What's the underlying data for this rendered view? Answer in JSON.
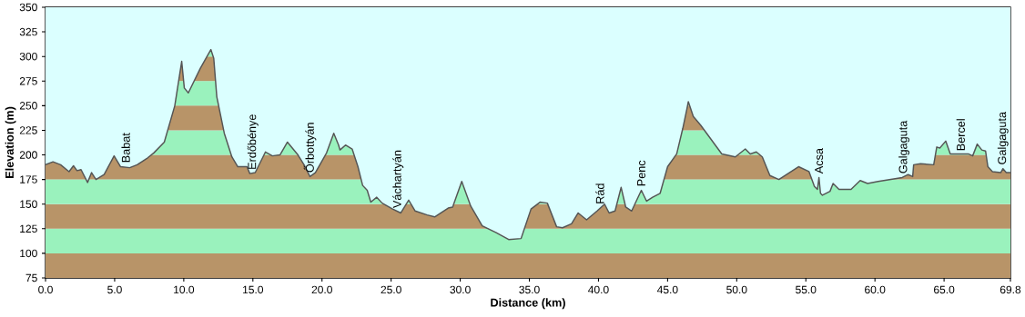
{
  "chart_data": {
    "type": "line",
    "xlabel": "Distance  (km)",
    "ylabel": "Elevation (m)",
    "xlim": [
      0,
      69.8
    ],
    "ylim": [
      75,
      350
    ],
    "xticks": [
      {
        "value": 0,
        "label": "0.0"
      },
      {
        "value": 5,
        "label": "5.0"
      },
      {
        "value": 10,
        "label": "10.0"
      },
      {
        "value": 15,
        "label": "15.0"
      },
      {
        "value": 20,
        "label": "20.0"
      },
      {
        "value": 25,
        "label": "25.0"
      },
      {
        "value": 30,
        "label": "30.0"
      },
      {
        "value": 35,
        "label": "35.0"
      },
      {
        "value": 40,
        "label": "40.0"
      },
      {
        "value": 45,
        "label": "45.0"
      },
      {
        "value": 50,
        "label": "50.0"
      },
      {
        "value": 55,
        "label": "55.0"
      },
      {
        "value": 60,
        "label": "60.0"
      },
      {
        "value": 65,
        "label": "65.0"
      },
      {
        "value": 69.8,
        "label": "69.8"
      }
    ],
    "yticks": [
      75,
      100,
      125,
      150,
      175,
      200,
      225,
      250,
      275,
      300,
      325,
      350
    ],
    "series": [
      {
        "color": "#555555",
        "x": [
          0,
          0.54,
          1.09,
          1.7,
          2.02,
          2.28,
          2.57,
          3.04,
          3.33,
          3.65,
          4.24,
          4.96,
          5.43,
          6.09,
          6.63,
          7.39,
          7.83,
          8.59,
          9.35,
          9.85,
          10.04,
          10.33,
          11.2,
          11.96,
          12.17,
          12.39,
          12.93,
          13.48,
          13.91,
          14.57,
          14.78,
          15.17,
          15.91,
          16.41,
          16.96,
          17.5,
          18.26,
          18.7,
          19.13,
          19.52,
          20.33,
          20.85,
          21.2,
          21.3,
          21.7,
          22.18,
          22.6,
          22.94,
          23.27,
          23.53,
          23.96,
          24.35,
          25.11,
          25.7,
          26.27,
          26.74,
          27.6,
          28.15,
          29.13,
          29.45,
          30.11,
          30.76,
          31.59,
          32.6,
          33.5,
          34.4,
          35.12,
          35.77,
          36.3,
          36.97,
          37.4,
          38.05,
          38.53,
          39.14,
          39.9,
          40.44,
          40.77,
          41.2,
          41.64,
          41.97,
          42.4,
          43.1,
          43.48,
          43.92,
          44.46,
          45.0,
          45.66,
          46.1,
          46.4,
          46.5,
          46.86,
          47.4,
          48.92,
          49.9,
          50.62,
          50.98,
          51.42,
          51.85,
          52.4,
          53.05,
          54.47,
          55.23,
          55.62,
          55.84,
          55.95,
          56.06,
          56.2,
          56.75,
          56.97,
          57.4,
          58.27,
          58.93,
          59.47,
          60.23,
          61.97,
          62.4,
          62.73,
          62.8,
          63.3,
          64.25,
          64.47,
          64.69,
          65.12,
          65.45,
          66.75,
          67.07,
          67.4,
          67.73,
          68.0,
          68.17,
          68.5,
          69.1,
          69.26,
          69.5,
          69.8
        ],
        "values": [
          190,
          193,
          190,
          183,
          189,
          184,
          185,
          172,
          182,
          175,
          180,
          199,
          188,
          187,
          190,
          197,
          202,
          213,
          250,
          295,
          268,
          263,
          288,
          307,
          298,
          259,
          222,
          198,
          188,
          188,
          181,
          182,
          203,
          199,
          200,
          213,
          200,
          190,
          178,
          182,
          202,
          222,
          210,
          205,
          210,
          206,
          188,
          169,
          164,
          152,
          157,
          151,
          145,
          141,
          154,
          143,
          139,
          137,
          146,
          147,
          173,
          148,
          128,
          121,
          114,
          115,
          145,
          152,
          151,
          127,
          126,
          130,
          141,
          134,
          143,
          150,
          141,
          143,
          167,
          147,
          143,
          164,
          153,
          157,
          161,
          188,
          201,
          227,
          247,
          254,
          239,
          230,
          201,
          198,
          206,
          201,
          203,
          198,
          179,
          175,
          188,
          183,
          168,
          165,
          177,
          161,
          159,
          163,
          171,
          165,
          165,
          174,
          171,
          173,
          177,
          180,
          178,
          190,
          191,
          190,
          208,
          207,
          214,
          201,
          201,
          199,
          211,
          205,
          204,
          188,
          183,
          182,
          186,
          182,
          182
        ]
      }
    ],
    "annotations": [
      {
        "text": "Babat",
        "x": 5.8,
        "y": 188
      },
      {
        "text": "Erdőbénye",
        "x": 15.0,
        "y": 181
      },
      {
        "text": "Őrbottyán",
        "x": 19.13,
        "y": 178
      },
      {
        "text": "Váchartyán",
        "x": 25.5,
        "y": 142
      },
      {
        "text": "Rád",
        "x": 40.1,
        "y": 146
      },
      {
        "text": "Penc",
        "x": 43.1,
        "y": 164
      },
      {
        "text": "Acsa",
        "x": 55.95,
        "y": 177
      },
      {
        "text": "Galgaguta",
        "x": 62.1,
        "y": 177
      },
      {
        "text": "Bercel",
        "x": 66.2,
        "y": 200
      },
      {
        "text": "Galgaguta",
        "x": 69.26,
        "y": 186
      }
    ],
    "bands": [
      {
        "axis": "y",
        "from": 75,
        "to": 100,
        "color": "#b89468"
      },
      {
        "axis": "y",
        "from": 100,
        "to": 125,
        "color": "#9af2bd"
      },
      {
        "axis": "y",
        "from": 125,
        "to": 150,
        "color": "#b89468"
      },
      {
        "axis": "y",
        "from": 150,
        "to": 175,
        "color": "#9af2bd"
      },
      {
        "axis": "y",
        "from": 175,
        "to": 200,
        "color": "#b89468"
      },
      {
        "axis": "y",
        "from": 200,
        "to": 225,
        "color": "#9af2bd"
      },
      {
        "axis": "y",
        "from": 225,
        "to": 250,
        "color": "#b89468"
      },
      {
        "axis": "y",
        "from": 250,
        "to": 275,
        "color": "#9af2bd"
      },
      {
        "axis": "y",
        "from": 275,
        "to": 300,
        "color": "#b89468"
      },
      {
        "axis": "y",
        "from": 300,
        "to": 325,
        "color": "#9af2bd"
      }
    ]
  }
}
